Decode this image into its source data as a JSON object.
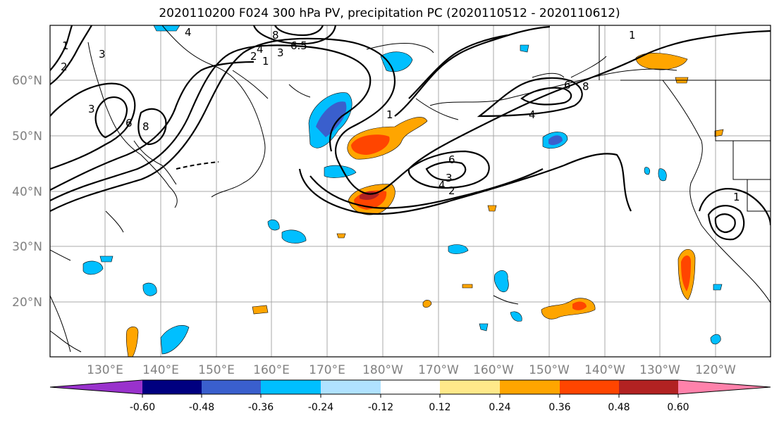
{
  "title": "2020110200 F024 300 hPa PV, precipitation PC (2020110512 - 2020110612)",
  "lat_labels": [
    "60°N",
    "50°N",
    "40°N",
    "30°N",
    "20°N"
  ],
  "lon_labels": [
    "130°E",
    "140°E",
    "150°E",
    "160°E",
    "170°E",
    "180°W",
    "170°W",
    "160°W",
    "150°W",
    "140°W",
    "130°W",
    "120°W"
  ],
  "pv_contour_labels": [
    "4",
    "8",
    "6.5",
    "4",
    "3",
    "2",
    "1",
    "1",
    "2",
    "3",
    "3",
    "6",
    "8",
    "1",
    "6",
    "3",
    "4",
    "2",
    "6",
    "8",
    "4",
    "1",
    "1"
  ],
  "colorbar": {
    "ticks": [
      "-0.60",
      "-0.48",
      "-0.36",
      "-0.24",
      "-0.12",
      "0.12",
      "0.24",
      "0.36",
      "0.48",
      "0.60"
    ],
    "colors": {
      "under": "#9932cc",
      "bins": [
        "#000080",
        "#3a5fcd",
        "#00bfff",
        "#b0e2ff",
        "#ffffff",
        "#ffe98a",
        "#ffa500",
        "#ff4500",
        "#b22222"
      ],
      "over": "#ff82ab"
    }
  }
}
